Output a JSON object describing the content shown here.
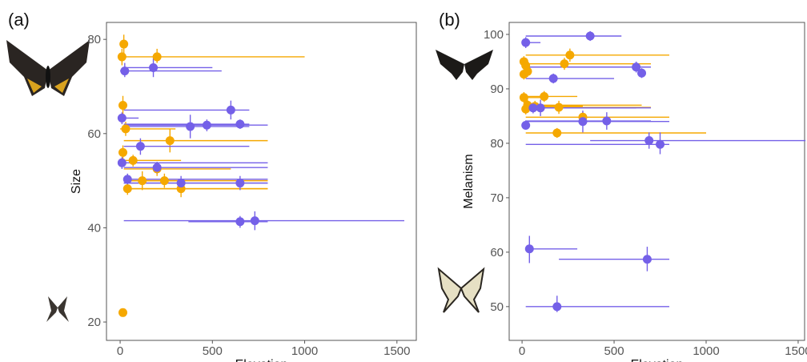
{
  "chart_data": [
    {
      "type": "scatter",
      "panel_label": "(a)",
      "x_label": "Elevation",
      "y_label": "Size",
      "xlim": [
        -74,
        1605
      ],
      "ylim": [
        16.1,
        83.6
      ],
      "xticks": [
        0,
        500,
        1000,
        1500
      ],
      "yticks": [
        20,
        40,
        60,
        80
      ],
      "series": [
        {
          "color": "#f5a800",
          "x": [
            20,
            10,
            200,
            15,
            30,
            270,
            15,
            70,
            200,
            120,
            240,
            40,
            330,
            15
          ],
          "y": [
            79,
            76.3,
            76.3,
            66,
            61,
            58.5,
            56,
            54.3,
            52.5,
            50,
            50,
            48.3,
            48.3,
            22
          ],
          "xmin": [
            null,
            null,
            20,
            null,
            0,
            20,
            null,
            20,
            20,
            20,
            20,
            20,
            30,
            null
          ],
          "xmax": [
            null,
            null,
            1000,
            null,
            300,
            800,
            null,
            330,
            600,
            350,
            800,
            800,
            800,
            null
          ],
          "ymin": [
            77,
            74.5,
            75,
            64,
            59.5,
            56,
            54.5,
            53,
            51,
            48,
            48.5,
            47,
            46.5,
            null
          ],
          "ymax": [
            81,
            78,
            78,
            68,
            62.5,
            61,
            57.5,
            55.5,
            54,
            52,
            51.5,
            49.5,
            50,
            null
          ]
        },
        {
          "color": "#7460e8",
          "x": [
            25,
            180,
            600,
            10,
            380,
            470,
            650,
            110,
            10,
            200,
            40,
            330,
            650,
            650,
            730
          ],
          "y": [
            73.3,
            74,
            65,
            63.3,
            61.5,
            61.8,
            62,
            57.3,
            53.8,
            52.8,
            50.3,
            49.5,
            49.5,
            41.3,
            41.5
          ],
          "xmin": [
            0,
            30,
            20,
            0,
            20,
            20,
            20,
            20,
            0,
            20,
            20,
            20,
            20,
            370,
            20
          ],
          "xmax": [
            550,
            500,
            700,
            100,
            700,
            800,
            700,
            700,
            800,
            800,
            800,
            800,
            800,
            800,
            1540
          ],
          "ymin": [
            72,
            72,
            63,
            62,
            59,
            60.5,
            61,
            55.5,
            52.5,
            51.5,
            49,
            48,
            48,
            40,
            39.5
          ],
          "ymax": [
            75,
            76,
            67,
            64.5,
            64,
            63,
            63,
            59,
            55,
            54,
            51.5,
            51,
            51,
            42.5,
            43.5
          ]
        }
      ]
    },
    {
      "type": "scatter",
      "panel_label": "(b)",
      "x_label": "Elevation",
      "y_label": "Melanism",
      "xlim": [
        -70,
        1535
      ],
      "ylim": [
        43.8,
        102.2
      ],
      "xticks": [
        0,
        500,
        1000,
        1500
      ],
      "yticks": [
        50,
        60,
        70,
        80,
        90,
        100
      ],
      "series": [
        {
          "color": "#f5a800",
          "x": [
            10,
            20,
            260,
            230,
            30,
            10,
            10,
            120,
            30,
            70,
            200,
            330,
            20,
            190
          ],
          "y": [
            95,
            94.3,
            96.2,
            94.6,
            93.2,
            92.7,
            88.4,
            88.6,
            87,
            86.8,
            86.6,
            84.8,
            86.3,
            81.9
          ],
          "xmin": [
            null,
            null,
            20,
            20,
            null,
            null,
            0,
            20,
            20,
            20,
            20,
            20,
            null,
            20
          ],
          "xmax": [
            null,
            null,
            800,
            700,
            null,
            null,
            100,
            300,
            650,
            330,
            700,
            800,
            null,
            1000
          ],
          "ymin": [
            94,
            93.3,
            95,
            93.5,
            92.2,
            91.7,
            87.4,
            87.6,
            86,
            85.8,
            85.4,
            83.8,
            85.3,
            81
          ],
          "ymax": [
            96,
            95.3,
            97.4,
            95.7,
            94.2,
            93.7,
            89.4,
            89.6,
            88,
            87.8,
            87.8,
            85.8,
            87.3,
            82.8
          ]
        },
        {
          "color": "#7460e8",
          "x": [
            20,
            370,
            620,
            650,
            170,
            100,
            60,
            330,
            460,
            20,
            690,
            750,
            40,
            680,
            190
          ],
          "y": [
            98.5,
            99.7,
            94,
            92.9,
            91.9,
            86.5,
            86.5,
            84,
            84.1,
            83.3,
            80.5,
            79.8,
            60.6,
            58.7,
            50
          ],
          "xmin": [
            0,
            20,
            20,
            null,
            20,
            20,
            20,
            20,
            20,
            null,
            370,
            20,
            20,
            200,
            20
          ],
          "xmax": [
            100,
            540,
            700,
            null,
            500,
            620,
            700,
            800,
            700,
            null,
            1540,
            800,
            300,
            800,
            800
          ],
          "ymin": [
            97.5,
            98.8,
            93,
            92,
            91,
            85,
            85.5,
            82,
            82.5,
            82.5,
            79,
            78,
            58,
            56.5,
            49
          ],
          "ymax": [
            99.5,
            100.6,
            95,
            93.8,
            92.8,
            88,
            87.5,
            86,
            85.7,
            84.2,
            82,
            82,
            63,
            61,
            52
          ]
        }
      ]
    }
  ]
}
